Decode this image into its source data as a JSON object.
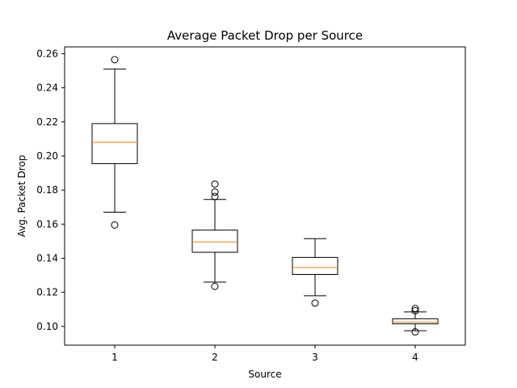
{
  "chart_data": {
    "type": "boxplot",
    "title": "Average Packet Drop per Source",
    "xlabel": "Source",
    "ylabel": "Avg. Packet Drop",
    "categories": [
      "1",
      "2",
      "3",
      "4"
    ],
    "ylim": [
      0.089,
      0.264
    ],
    "yticks": [
      0.1,
      0.12,
      0.14,
      0.16,
      0.18,
      0.2,
      0.22,
      0.24,
      0.26
    ],
    "ytick_labels": [
      "0.10",
      "0.12",
      "0.14",
      "0.16",
      "0.18",
      "0.20",
      "0.22",
      "0.24",
      "0.26"
    ],
    "grid": false,
    "box_color": "#000000",
    "median_color": "#ff7f0e",
    "boxes": [
      {
        "category": "1",
        "whisker_low": 0.167,
        "q1": 0.1955,
        "median": 0.208,
        "q3": 0.219,
        "whisker_high": 0.251,
        "outliers": [
          0.1595,
          0.2565
        ]
      },
      {
        "category": "2",
        "whisker_low": 0.126,
        "q1": 0.1435,
        "median": 0.1495,
        "q3": 0.1565,
        "whisker_high": 0.1745,
        "outliers": [
          0.1235,
          0.1762,
          0.1788,
          0.1835
        ]
      },
      {
        "category": "3",
        "whisker_low": 0.118,
        "q1": 0.1305,
        "median": 0.1345,
        "q3": 0.1405,
        "whisker_high": 0.1515,
        "outliers": [
          0.1137
        ]
      },
      {
        "category": "4",
        "whisker_low": 0.0975,
        "q1": 0.1015,
        "median": 0.1025,
        "q3": 0.1045,
        "whisker_high": 0.1085,
        "outliers": [
          0.0968,
          0.1092,
          0.1105
        ]
      }
    ]
  }
}
